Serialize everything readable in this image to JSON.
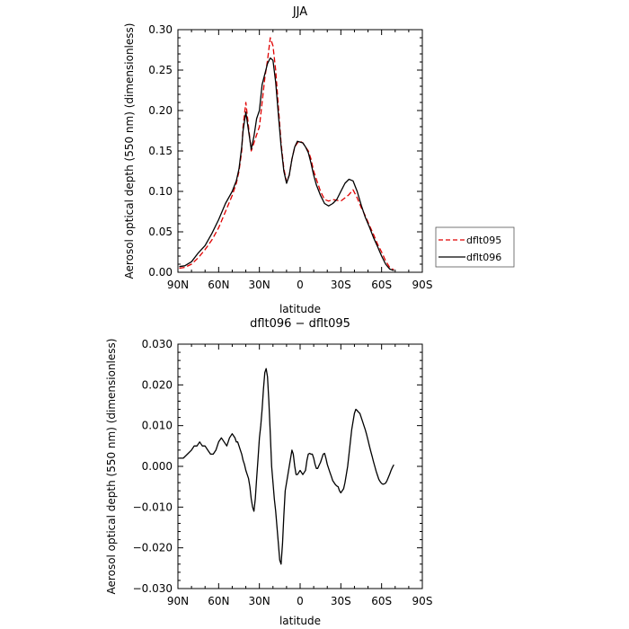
{
  "chart_data": [
    {
      "type": "line",
      "title": "JJA",
      "xlabel": "latitude",
      "ylabel": "Aerosol optical depth (550 nm) (dimensionless)",
      "xlim": [
        90,
        -90
      ],
      "ylim": [
        0,
        0.3
      ],
      "x_ticks": [
        90,
        60,
        30,
        0,
        -30,
        -60,
        -90
      ],
      "x_tick_labels": [
        "90N",
        "60N",
        "30N",
        "0",
        "30S",
        "60S",
        "90S"
      ],
      "y_ticks": [
        0,
        0.05,
        0.1,
        0.15,
        0.2,
        0.25,
        0.3
      ],
      "y_tick_labels": [
        "0.00",
        "0.05",
        "0.10",
        "0.15",
        "0.20",
        "0.25",
        "0.30"
      ],
      "grid": false,
      "legend_position": "right",
      "series": [
        {
          "name": "dflt095",
          "color": "#e00000",
          "dash": "dashed",
          "x": [
            89,
            85,
            80,
            75,
            70,
            65,
            60,
            55,
            50,
            47,
            45,
            43,
            42,
            40,
            38,
            36,
            34,
            32,
            30,
            28,
            26,
            24,
            22,
            20,
            18,
            16,
            14,
            12,
            10,
            8,
            6,
            4,
            2,
            0,
            -2,
            -4,
            -6,
            -8,
            -10,
            -12,
            -15,
            -18,
            -21,
            -24,
            -27,
            -30,
            -33,
            -36,
            -39,
            -42,
            -45,
            -48,
            -51,
            -54,
            -57,
            -60,
            -63,
            -66,
            -69
          ],
          "y": [
            0.005,
            0.006,
            0.01,
            0.018,
            0.028,
            0.04,
            0.055,
            0.075,
            0.095,
            0.11,
            0.125,
            0.15,
            0.18,
            0.21,
            0.18,
            0.15,
            0.16,
            0.17,
            0.18,
            0.21,
            0.24,
            0.262,
            0.29,
            0.28,
            0.25,
            0.205,
            0.16,
            0.128,
            0.112,
            0.12,
            0.14,
            0.155,
            0.16,
            0.162,
            0.16,
            0.155,
            0.15,
            0.14,
            0.125,
            0.115,
            0.1,
            0.09,
            0.088,
            0.09,
            0.089,
            0.088,
            0.092,
            0.096,
            0.102,
            0.092,
            0.08,
            0.07,
            0.058,
            0.047,
            0.035,
            0.025,
            0.014,
            0.006,
            0.003
          ]
        },
        {
          "name": "dflt096",
          "color": "#000000",
          "dash": "solid",
          "x": [
            89,
            85,
            80,
            75,
            70,
            65,
            60,
            55,
            50,
            47,
            45,
            43,
            42,
            40,
            38,
            36,
            34,
            32,
            30,
            28,
            26,
            24,
            22,
            20,
            18,
            16,
            14,
            12,
            10,
            8,
            6,
            4,
            2,
            0,
            -2,
            -4,
            -6,
            -8,
            -10,
            -12,
            -15,
            -18,
            -21,
            -24,
            -27,
            -30,
            -33,
            -36,
            -39,
            -42,
            -45,
            -48,
            -51,
            -54,
            -57,
            -60,
            -63,
            -66,
            -69
          ],
          "y": [
            0.007,
            0.008,
            0.013,
            0.024,
            0.033,
            0.048,
            0.065,
            0.085,
            0.1,
            0.113,
            0.128,
            0.155,
            0.175,
            0.198,
            0.175,
            0.152,
            0.168,
            0.19,
            0.2,
            0.232,
            0.245,
            0.258,
            0.265,
            0.262,
            0.235,
            0.195,
            0.156,
            0.125,
            0.11,
            0.12,
            0.14,
            0.155,
            0.162,
            0.161,
            0.16,
            0.155,
            0.148,
            0.135,
            0.12,
            0.108,
            0.095,
            0.085,
            0.082,
            0.085,
            0.09,
            0.1,
            0.11,
            0.115,
            0.113,
            0.1,
            0.083,
            0.068,
            0.056,
            0.043,
            0.032,
            0.02,
            0.01,
            0.004,
            0.002
          ]
        }
      ]
    },
    {
      "type": "line",
      "title": "dflt096 − dflt095",
      "xlabel": "latitude",
      "ylabel": "Aerosol optical depth (550 nm) (dimensionless)",
      "xlim": [
        90,
        -90
      ],
      "ylim": [
        -0.03,
        0.03
      ],
      "x_ticks": [
        90,
        60,
        30,
        0,
        -30,
        -60,
        -90
      ],
      "x_tick_labels": [
        "90N",
        "60N",
        "30N",
        "0",
        "30S",
        "60S",
        "90S"
      ],
      "y_ticks": [
        -0.03,
        -0.02,
        -0.01,
        0,
        0.01,
        0.02,
        0.03
      ],
      "y_tick_labels": [
        "−0.030",
        "−0.020",
        "−0.010",
        "0.000",
        "0.010",
        "0.020",
        "0.030"
      ],
      "grid": false,
      "series": [
        {
          "color": "#000000",
          "dash": "solid",
          "x": [
            89,
            86,
            83,
            80,
            78,
            76,
            74,
            72,
            70,
            68,
            66,
            64,
            62,
            60,
            58,
            56,
            54,
            52,
            50,
            48,
            47,
            46,
            45,
            44,
            43,
            42,
            41,
            40,
            39,
            38,
            37,
            36,
            35,
            34,
            33,
            32,
            31,
            30,
            29,
            28,
            27,
            26,
            25,
            24,
            23,
            22,
            21,
            20,
            19,
            18,
            17,
            16,
            15,
            14,
            13,
            12,
            11,
            10,
            9,
            8,
            7,
            6,
            5,
            4,
            3,
            2,
            1,
            0,
            -1,
            -2,
            -3,
            -4,
            -5,
            -6,
            -7,
            -8,
            -9,
            -10,
            -11,
            -12,
            -13,
            -14,
            -15,
            -16,
            -17,
            -18,
            -19,
            -20,
            -21,
            -22,
            -23,
            -24,
            -25,
            -26,
            -27,
            -28,
            -29,
            -30,
            -31,
            -32,
            -33,
            -34,
            -35,
            -36,
            -37,
            -38,
            -39,
            -40,
            -41,
            -42,
            -43,
            -44,
            -45,
            -46,
            -47,
            -48,
            -49,
            -50,
            -51,
            -52,
            -53,
            -54,
            -55,
            -56,
            -57,
            -58,
            -59,
            -60,
            -61,
            -62,
            -63,
            -64,
            -65,
            -66,
            -67,
            -68,
            -69
          ],
          "y": [
            0.002,
            0.002,
            0.003,
            0.004,
            0.005,
            0.005,
            0.006,
            0.005,
            0.005,
            0.004,
            0.003,
            0.003,
            0.004,
            0.006,
            0.007,
            0.006,
            0.005,
            0.007,
            0.008,
            0.007,
            0.006,
            0.006,
            0.005,
            0.004,
            0.003,
            0.0015,
            0.0005,
            -0.001,
            -0.002,
            -0.003,
            -0.005,
            -0.008,
            -0.01,
            -0.011,
            -0.008,
            -0.003,
            0.002,
            0.007,
            0.01,
            0.014,
            0.019,
            0.023,
            0.024,
            0.022,
            0.016,
            0.008,
            0.0,
            -0.004,
            -0.008,
            -0.011,
            -0.015,
            -0.019,
            -0.023,
            -0.024,
            -0.019,
            -0.012,
            -0.006,
            -0.004,
            -0.002,
            0.0,
            0.002,
            0.004,
            0.003,
            0.0,
            -0.002,
            -0.002,
            -0.0015,
            -0.001,
            -0.0015,
            -0.002,
            -0.0015,
            -0.001,
            0.0015,
            0.003,
            0.0032,
            0.003,
            0.003,
            0.002,
            0.0005,
            -0.0005,
            -0.0005,
            0.0003,
            0.001,
            0.002,
            0.003,
            0.0032,
            0.002,
            0.0005,
            -0.0005,
            -0.0015,
            -0.0025,
            -0.0035,
            -0.004,
            -0.0045,
            -0.0048,
            -0.005,
            -0.006,
            -0.0065,
            -0.006,
            -0.0055,
            -0.004,
            -0.002,
            0.0,
            0.003,
            0.006,
            0.009,
            0.011,
            0.013,
            0.014,
            0.0137,
            0.0133,
            0.013,
            0.012,
            0.011,
            0.01,
            0.009,
            0.0078,
            0.0064,
            0.005,
            0.0037,
            0.0025,
            0.0012,
            0.0,
            -0.0012,
            -0.0022,
            -0.0032,
            -0.0038,
            -0.0042,
            -0.0044,
            -0.0043,
            -0.0041,
            -0.0035,
            -0.0027,
            -0.0019,
            -0.001,
            -0.0002,
            0.0004
          ]
        }
      ]
    }
  ]
}
